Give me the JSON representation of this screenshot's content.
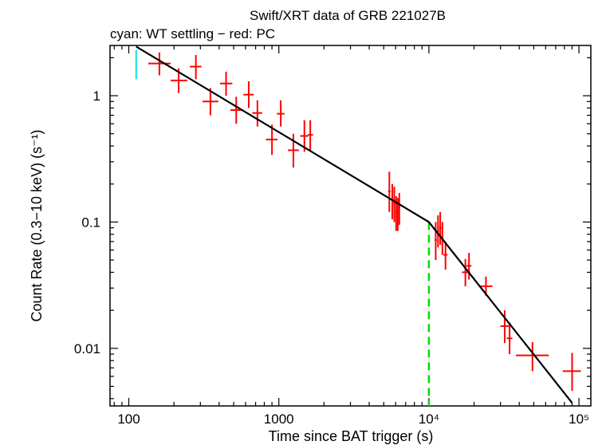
{
  "chart_data": {
    "type": "scatter",
    "title": "Swift/XRT data of GRB 221027B",
    "subtitle": "cyan: WT settling − red: PC",
    "xlabel": "Time since BAT trigger (s)",
    "ylabel": "Count Rate (0.3−10 keV) (s⁻¹)",
    "xscale": "log",
    "yscale": "log",
    "xlim": [
      75,
      120000
    ],
    "ylim": [
      0.0035,
      2.5
    ],
    "x_ticks": [
      {
        "value": 100,
        "label": "100"
      },
      {
        "value": 1000,
        "label": "1000"
      },
      {
        "value": 10000,
        "label": "10⁴"
      },
      {
        "value": 100000,
        "label": "10⁵"
      }
    ],
    "y_ticks": [
      {
        "value": 0.01,
        "label": "0.01"
      },
      {
        "value": 0.1,
        "label": "0.1"
      },
      {
        "value": 1,
        "label": "1"
      }
    ],
    "series": [
      {
        "name": "WT settling",
        "color": "#00e5ee",
        "points": [
          {
            "x": 112,
            "xlo": 111,
            "xhi": 113,
            "y": 1.85,
            "ylo": 1.35,
            "yhi": 2.3
          }
        ]
      },
      {
        "name": "PC",
        "color": "#ff0000",
        "points": [
          {
            "x": 160,
            "xlo": 135,
            "xhi": 190,
            "y": 1.8,
            "ylo": 1.45,
            "yhi": 2.2
          },
          {
            "x": 215,
            "xlo": 190,
            "xhi": 245,
            "y": 1.32,
            "ylo": 1.05,
            "yhi": 1.65
          },
          {
            "x": 280,
            "xlo": 255,
            "xhi": 305,
            "y": 1.7,
            "ylo": 1.35,
            "yhi": 2.1
          },
          {
            "x": 350,
            "xlo": 310,
            "xhi": 395,
            "y": 0.9,
            "ylo": 0.7,
            "yhi": 1.15
          },
          {
            "x": 445,
            "xlo": 405,
            "xhi": 490,
            "y": 1.25,
            "ylo": 1.0,
            "yhi": 1.55
          },
          {
            "x": 520,
            "xlo": 475,
            "xhi": 570,
            "y": 0.77,
            "ylo": 0.6,
            "yhi": 0.98
          },
          {
            "x": 630,
            "xlo": 580,
            "xhi": 680,
            "y": 1.02,
            "ylo": 0.8,
            "yhi": 1.3
          },
          {
            "x": 720,
            "xlo": 665,
            "xhi": 775,
            "y": 0.73,
            "ylo": 0.57,
            "yhi": 0.92
          },
          {
            "x": 900,
            "xlo": 820,
            "xhi": 980,
            "y": 0.45,
            "ylo": 0.34,
            "yhi": 0.59
          },
          {
            "x": 1030,
            "xlo": 970,
            "xhi": 1090,
            "y": 0.72,
            "ylo": 0.57,
            "yhi": 0.92
          },
          {
            "x": 1250,
            "xlo": 1150,
            "xhi": 1360,
            "y": 0.37,
            "ylo": 0.27,
            "yhi": 0.5
          },
          {
            "x": 1480,
            "xlo": 1390,
            "xhi": 1570,
            "y": 0.48,
            "ylo": 0.36,
            "yhi": 0.64
          },
          {
            "x": 1620,
            "xlo": 1560,
            "xhi": 1690,
            "y": 0.49,
            "ylo": 0.37,
            "yhi": 0.64
          },
          {
            "x": 5450,
            "xlo": 5350,
            "xhi": 5560,
            "y": 0.175,
            "ylo": 0.12,
            "yhi": 0.25
          },
          {
            "x": 5700,
            "xlo": 5600,
            "xhi": 5800,
            "y": 0.15,
            "ylo": 0.105,
            "yhi": 0.2
          },
          {
            "x": 5880,
            "xlo": 5790,
            "xhi": 5970,
            "y": 0.14,
            "ylo": 0.1,
            "yhi": 0.19
          },
          {
            "x": 6050,
            "xlo": 5970,
            "xhi": 6130,
            "y": 0.12,
            "ylo": 0.085,
            "yhi": 0.16
          },
          {
            "x": 6200,
            "xlo": 6120,
            "xhi": 6280,
            "y": 0.115,
            "ylo": 0.085,
            "yhi": 0.155
          },
          {
            "x": 6350,
            "xlo": 6270,
            "xhi": 6430,
            "y": 0.13,
            "ylo": 0.095,
            "yhi": 0.17
          },
          {
            "x": 11100,
            "xlo": 10900,
            "xhi": 11300,
            "y": 0.072,
            "ylo": 0.05,
            "yhi": 0.1
          },
          {
            "x": 11500,
            "xlo": 11300,
            "xhi": 11700,
            "y": 0.085,
            "ylo": 0.063,
            "yhi": 0.113
          },
          {
            "x": 11900,
            "xlo": 11700,
            "xhi": 12100,
            "y": 0.09,
            "ylo": 0.066,
            "yhi": 0.12
          },
          {
            "x": 12300,
            "xlo": 12100,
            "xhi": 12500,
            "y": 0.075,
            "ylo": 0.055,
            "yhi": 0.1
          },
          {
            "x": 12900,
            "xlo": 12500,
            "xhi": 13300,
            "y": 0.055,
            "ylo": 0.042,
            "yhi": 0.07
          },
          {
            "x": 17500,
            "xlo": 16600,
            "xhi": 18300,
            "y": 0.04,
            "ylo": 0.031,
            "yhi": 0.051
          },
          {
            "x": 18500,
            "xlo": 17800,
            "xhi": 19200,
            "y": 0.045,
            "ylo": 0.035,
            "yhi": 0.057
          },
          {
            "x": 24000,
            "xlo": 21500,
            "xhi": 26500,
            "y": 0.031,
            "ylo": 0.026,
            "yhi": 0.037
          },
          {
            "x": 32000,
            "xlo": 30000,
            "xhi": 34000,
            "y": 0.015,
            "ylo": 0.011,
            "yhi": 0.02
          },
          {
            "x": 34500,
            "xlo": 33000,
            "xhi": 36000,
            "y": 0.012,
            "ylo": 0.009,
            "yhi": 0.016
          },
          {
            "x": 49000,
            "xlo": 38000,
            "xhi": 63000,
            "y": 0.0088,
            "ylo": 0.0066,
            "yhi": 0.0112
          },
          {
            "x": 90000,
            "xlo": 78000,
            "xhi": 103000,
            "y": 0.0066,
            "ylo": 0.0046,
            "yhi": 0.0092
          }
        ]
      }
    ],
    "model": {
      "name": "broken power-law fit",
      "color": "#000000",
      "points": [
        [
          112,
          2.45
        ],
        [
          10000,
          0.1
        ],
        [
          90000,
          0.0037
        ]
      ]
    },
    "break_marker": {
      "x": 10000,
      "color": "#00dd00",
      "style": "dashed"
    }
  }
}
